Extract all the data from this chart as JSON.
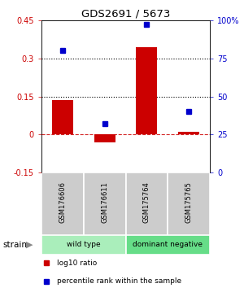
{
  "title": "GDS2691 / 5673",
  "samples": [
    "GSM176606",
    "GSM176611",
    "GSM175764",
    "GSM175765"
  ],
  "log10_ratio": [
    0.135,
    -0.03,
    0.345,
    0.01
  ],
  "percentile_rank": [
    80,
    32,
    97,
    40
  ],
  "bar_color": "#cc0000",
  "dot_color": "#0000cc",
  "ylim_left": [
    -0.15,
    0.45
  ],
  "ylim_right": [
    0,
    100
  ],
  "yticks_left": [
    -0.15,
    0.0,
    0.15,
    0.3,
    0.45
  ],
  "ytick_labels_left": [
    "-0.15",
    "0",
    "0.15",
    "0.3",
    "0.45"
  ],
  "yticks_right": [
    0,
    25,
    50,
    75,
    100
  ],
  "ytick_labels_right": [
    "0",
    "25",
    "50",
    "75",
    "100%"
  ],
  "hlines_dotted": [
    0.15,
    0.3
  ],
  "hline_dashed": 0.0,
  "groups": [
    {
      "label": "wild type",
      "indices": [
        0,
        1
      ],
      "color": "#aaeebb"
    },
    {
      "label": "dominant negative",
      "indices": [
        2,
        3
      ],
      "color": "#66dd88"
    }
  ],
  "group_label": "strain",
  "sample_box_color": "#cccccc",
  "legend_items": [
    {
      "color": "#cc0000",
      "label": "log10 ratio"
    },
    {
      "color": "#0000cc",
      "label": "percentile rank within the sample"
    }
  ]
}
